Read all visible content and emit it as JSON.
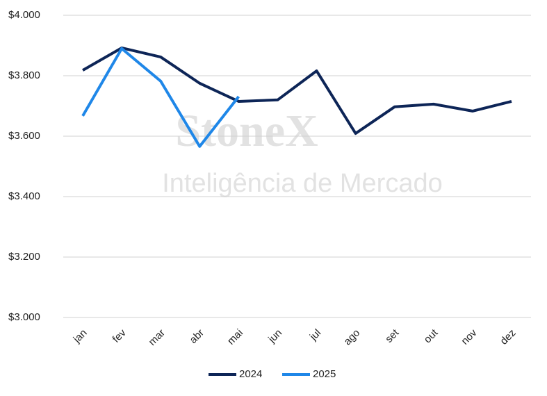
{
  "chart_data": {
    "type": "line",
    "watermark": [
      "StoneX",
      "Inteligência de Mercado"
    ],
    "categories": [
      "jan",
      "fev",
      "mar",
      "abr",
      "mai",
      "jun",
      "jul",
      "ago",
      "set",
      "out",
      "nov",
      "dez"
    ],
    "series": [
      {
        "name": "2024",
        "color": "#0d2557",
        "values": [
          3818,
          3892,
          3862,
          3775,
          3715,
          3720,
          3816,
          3609,
          3697,
          3706,
          3683,
          3715
        ]
      },
      {
        "name": "2025",
        "color": "#1f87e8",
        "values": [
          3667,
          3890,
          3782,
          3566,
          3731,
          null,
          null,
          null,
          null,
          null,
          null,
          null
        ]
      }
    ],
    "ylim": [
      3000,
      4000
    ],
    "yticks": [
      {
        "value": 3000,
        "label": "$3.000"
      },
      {
        "value": 3200,
        "label": "$3.200"
      },
      {
        "value": 3400,
        "label": "$3.400"
      },
      {
        "value": 3600,
        "label": "$3.600"
      },
      {
        "value": 3800,
        "label": "$3.800"
      },
      {
        "value": 4000,
        "label": "$4.000"
      }
    ],
    "grid": true,
    "legend": "bottom"
  }
}
